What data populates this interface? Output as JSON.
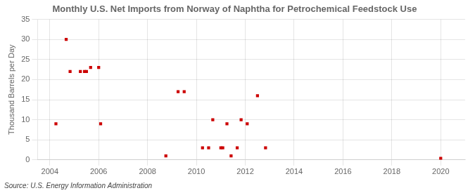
{
  "chart_data": {
    "type": "scatter",
    "title": "Monthly U.S. Net Imports from Norway of Naphtha for Petrochemical Feedstock Use",
    "ylabel": "Thousand Barrels per Day",
    "annotations": [
      "Source: U.S. Energy Information Administration"
    ],
    "x": [
      2004.25,
      2004.67,
      2004.83,
      2005.25,
      2005.42,
      2005.5,
      2005.67,
      2006.0,
      2006.08,
      2008.75,
      2009.25,
      2009.5,
      2010.25,
      2010.5,
      2010.67,
      2011.0,
      2011.08,
      2011.25,
      2011.42,
      2011.67,
      2011.83,
      2012.08,
      2012.5,
      2012.83,
      2020.0
    ],
    "values": [
      9,
      30,
      22,
      22,
      22,
      22,
      23,
      23,
      9,
      1,
      17,
      17,
      3,
      3,
      10,
      3,
      3,
      9,
      1,
      3,
      10,
      9,
      16,
      3,
      0.4
    ],
    "color": "#cc0000",
    "marker": "square",
    "xlim": [
      2003.5,
      2021.0
    ],
    "xticks": [
      2004,
      2006,
      2008,
      2010,
      2012,
      2014,
      2016,
      2018,
      2020
    ],
    "ylim": [
      0,
      35
    ],
    "yticks": [
      0,
      5,
      10,
      15,
      20,
      25,
      30,
      35
    ],
    "grid": true
  }
}
